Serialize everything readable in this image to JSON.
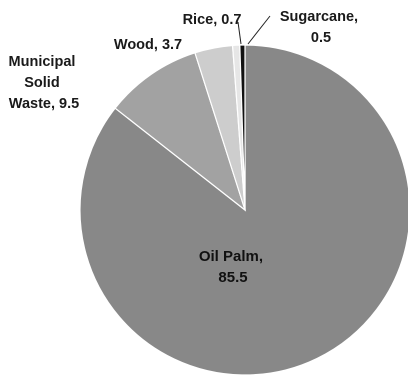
{
  "chart_data": {
    "type": "pie",
    "categories": [
      "Oil Palm",
      "Municipal Solid Waste",
      "Wood",
      "Rice",
      "Sugarcane"
    ],
    "values": [
      85.5,
      9.5,
      3.7,
      0.7,
      0.5
    ],
    "colors": [
      "#888888",
      "#a2a2a2",
      "#cdcdcd",
      "#e6e6e6",
      "#111111"
    ],
    "edge_color": "#ffffff",
    "start": "12 o'clock",
    "direction": "clockwise, largest slice first",
    "data_labels": [
      {
        "category": "Oil Palm",
        "name": "Oil Palm,",
        "value": "85.5"
      },
      {
        "category": "Municipal Solid Waste",
        "lines": [
          "Municipal",
          "Solid",
          "Waste, 9.5"
        ]
      },
      {
        "category": "Wood",
        "text": "Wood, 3.7"
      },
      {
        "category": "Rice",
        "text": "Rice, 0.7"
      },
      {
        "category": "Sugarcane",
        "lines": [
          "Sugarcane,",
          "0.5"
        ]
      }
    ]
  }
}
